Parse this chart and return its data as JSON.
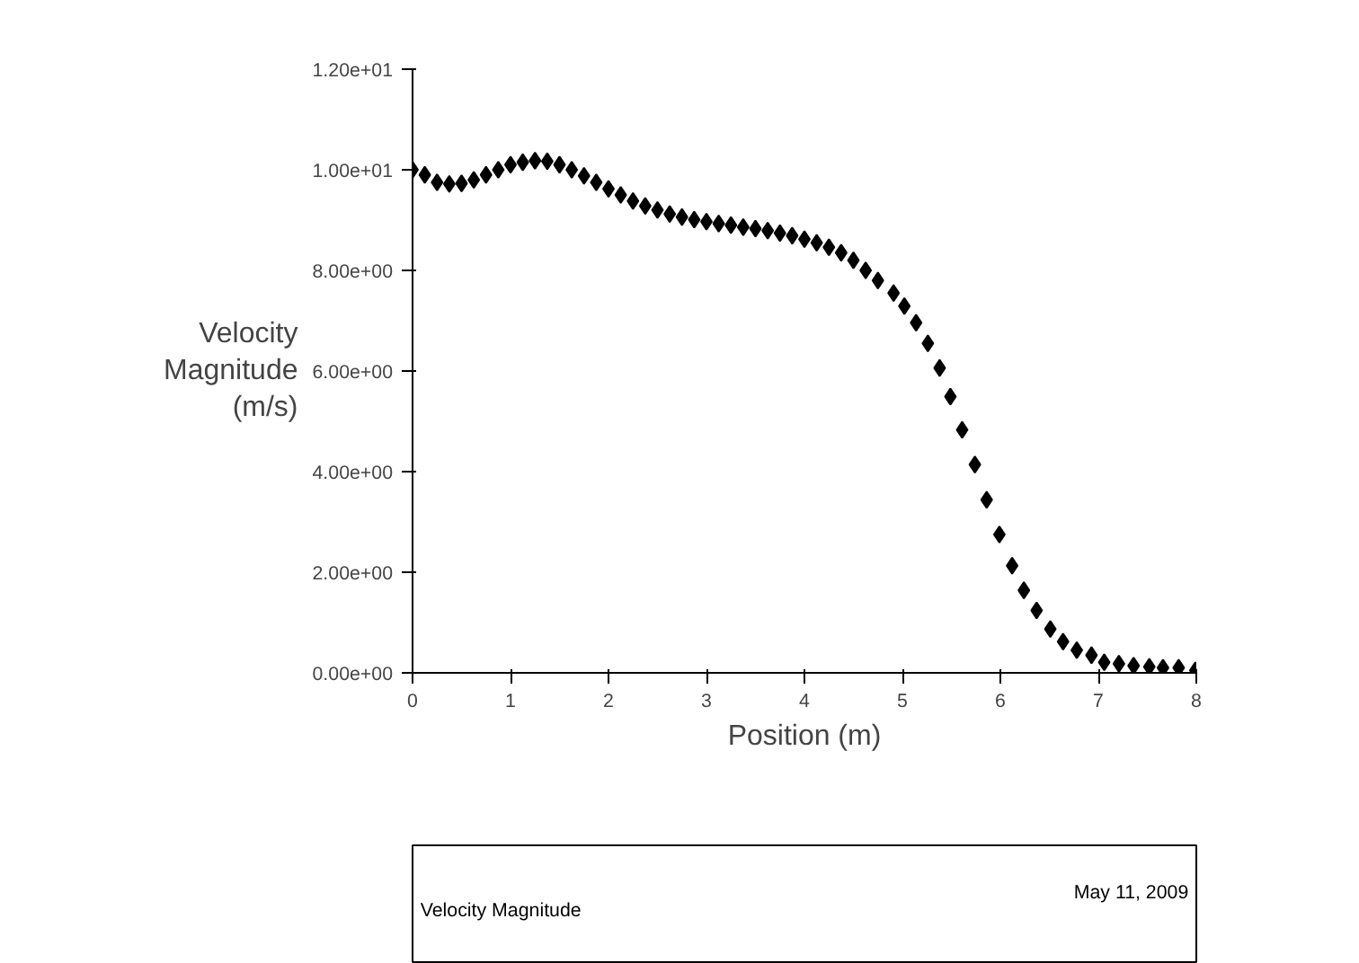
{
  "chart_data": {
    "type": "scatter",
    "xlabel": "Position (m)",
    "ylabel": "Velocity\nMagnitude\n(m/s)",
    "marker": "diamond",
    "grid": false,
    "xlim": [
      0,
      8
    ],
    "xticks": [
      0,
      1,
      2,
      3,
      4,
      5,
      6,
      7,
      8
    ],
    "ylim": [
      0,
      12
    ],
    "yticks": [
      {
        "value": 0,
        "label": "0.00e+00"
      },
      {
        "value": 2,
        "label": "2.00e+00"
      },
      {
        "value": 4,
        "label": "4.00e+00"
      },
      {
        "value": 6,
        "label": "6.00e+00"
      },
      {
        "value": 8,
        "label": "8.00e+00"
      },
      {
        "value": 10,
        "label": "1.00e+01"
      },
      {
        "value": 12,
        "label": "1.20e+01"
      }
    ],
    "annotations": [
      "Velocity Magnitude",
      "May 11, 2009"
    ],
    "series": [
      {
        "color": "#000000",
        "x": [
          0,
          0.125,
          0.25,
          0.375,
          0.5,
          0.625,
          0.75,
          0.875,
          1.0,
          1.125,
          1.25,
          1.375,
          1.5,
          1.625,
          1.75,
          1.875,
          2.0,
          2.125,
          2.25,
          2.375,
          2.5,
          2.625,
          2.75,
          2.875,
          3.0,
          3.125,
          3.25,
          3.375,
          3.5,
          3.625,
          3.75,
          3.875,
          4.0,
          4.125,
          4.25,
          4.375,
          4.5,
          4.625,
          4.75,
          4.91,
          5.02,
          5.14,
          5.26,
          5.38,
          5.49,
          5.61,
          5.74,
          5.86,
          5.99,
          6.12,
          6.24,
          6.37,
          6.51,
          6.64,
          6.78,
          6.93,
          7.06,
          7.21,
          7.36,
          7.52,
          7.66,
          7.82,
          7.99
        ],
        "values": [
          10.0,
          9.9,
          9.75,
          9.72,
          9.73,
          9.8,
          9.9,
          10.0,
          10.1,
          10.15,
          10.18,
          10.17,
          10.1,
          10.0,
          9.88,
          9.75,
          9.62,
          9.5,
          9.38,
          9.28,
          9.2,
          9.12,
          9.06,
          9.01,
          8.97,
          8.93,
          8.9,
          8.86,
          8.83,
          8.79,
          8.74,
          8.69,
          8.62,
          8.55,
          8.46,
          8.35,
          8.2,
          8.0,
          7.8,
          7.55,
          7.29,
          6.96,
          6.55,
          6.06,
          5.49,
          4.83,
          4.14,
          3.44,
          2.75,
          2.13,
          1.64,
          1.24,
          0.87,
          0.62,
          0.45,
          0.35,
          0.21,
          0.18,
          0.14,
          0.12,
          0.1,
          0.1,
          0.05
        ]
      }
    ]
  }
}
